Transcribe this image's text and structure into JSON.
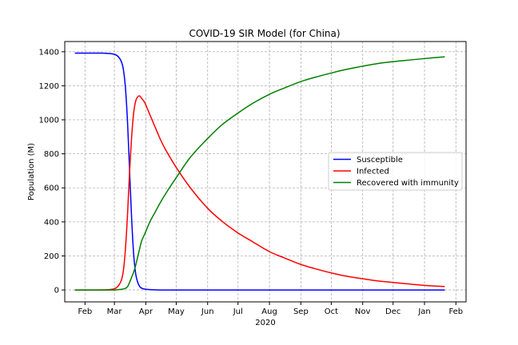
{
  "chart_data": {
    "type": "line",
    "title": "COVID-19 SIR Model (for China)",
    "xlabel": "2020",
    "ylabel": "Population (M)",
    "x_tick_labels": [
      "Feb",
      "Mar",
      "Apr",
      "May",
      "Jun",
      "Jul",
      "Aug",
      "Sep",
      "Oct",
      "Nov",
      "Dec",
      "Jan",
      "Feb"
    ],
    "x_tick_dates": [
      "2020-02-01",
      "2020-03-01",
      "2020-04-01",
      "2020-05-01",
      "2020-06-01",
      "2020-07-01",
      "2020-08-01",
      "2020-09-01",
      "2020-10-01",
      "2020-11-01",
      "2020-12-01",
      "2021-01-01",
      "2021-02-01"
    ],
    "xlim": [
      "2020-01-12",
      "2021-02-11"
    ],
    "ylim": [
      -70,
      1460
    ],
    "y_ticks": [
      0,
      200,
      400,
      600,
      800,
      1000,
      1200,
      1400
    ],
    "grid": true,
    "legend_position": "center-right",
    "x": [
      "2020-01-22",
      "2020-02-10",
      "2020-02-22",
      "2020-03-01",
      "2020-03-05",
      "2020-03-08",
      "2020-03-10",
      "2020-03-12",
      "2020-03-14",
      "2020-03-16",
      "2020-03-18",
      "2020-03-20",
      "2020-03-22",
      "2020-03-24",
      "2020-03-26",
      "2020-03-28",
      "2020-03-31",
      "2020-04-05",
      "2020-04-10",
      "2020-04-15",
      "2020-04-20",
      "2020-05-01",
      "2020-05-15",
      "2020-06-01",
      "2020-06-15",
      "2020-07-01",
      "2020-07-15",
      "2020-08-01",
      "2020-08-15",
      "2020-09-01",
      "2020-09-15",
      "2020-10-01",
      "2020-10-15",
      "2020-11-01",
      "2020-11-15",
      "2020-12-01",
      "2020-12-15",
      "2021-01-01",
      "2021-01-21"
    ],
    "series": [
      {
        "name": "Susceptible",
        "color": "#0000ff",
        "values": [
          1392,
          1392,
          1391,
          1385,
          1370,
          1340,
          1290,
          1180,
          980,
          700,
          420,
          210,
          95,
          45,
          20,
          10,
          5,
          2,
          1,
          0,
          0,
          0,
          0,
          0,
          0,
          0,
          0,
          0,
          0,
          0,
          0,
          0,
          0,
          0,
          0,
          0,
          0,
          0,
          0
        ]
      },
      {
        "name": "Infected",
        "color": "#ff0000",
        "values": [
          0,
          0,
          1,
          7,
          25,
          60,
          120,
          250,
          450,
          700,
          900,
          1040,
          1110,
          1135,
          1140,
          1125,
          1100,
          1030,
          960,
          890,
          830,
          720,
          600,
          480,
          405,
          335,
          285,
          225,
          190,
          150,
          125,
          100,
          82,
          66,
          54,
          44,
          36,
          27,
          20
        ]
      },
      {
        "name": "Recovered with immunity",
        "color": "#008000",
        "values": [
          0,
          0,
          0,
          0,
          2,
          4,
          6,
          10,
          20,
          45,
          75,
          105,
          145,
          195,
          245,
          290,
          330,
          400,
          455,
          510,
          560,
          660,
          780,
          890,
          970,
          1040,
          1095,
          1150,
          1185,
          1225,
          1250,
          1275,
          1295,
          1315,
          1330,
          1342,
          1350,
          1360,
          1370
        ]
      }
    ]
  }
}
